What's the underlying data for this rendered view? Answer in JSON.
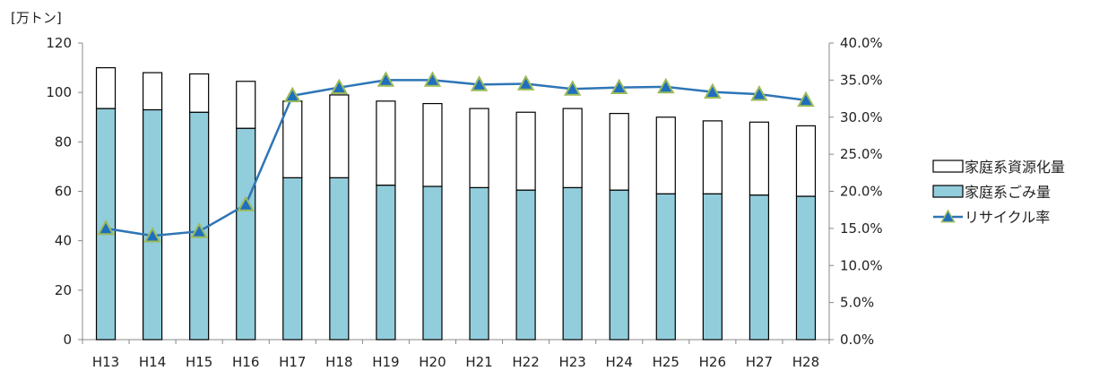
{
  "chart_data": {
    "type": "bar",
    "y_unit_label": "[万トン]",
    "categories": [
      "H13",
      "H14",
      "H15",
      "H16",
      "H17",
      "H18",
      "H19",
      "H20",
      "H21",
      "H22",
      "H23",
      "H24",
      "H25",
      "H26",
      "H27",
      "H28"
    ],
    "series": [
      {
        "name": "家庭系ごみ量",
        "kind": "stacked-bar",
        "axis": "left",
        "color": "#92cddc",
        "values": [
          93.5,
          93,
          92,
          85.5,
          65.5,
          65.5,
          62.5,
          62,
          61.5,
          60.5,
          61.5,
          60.5,
          59,
          59,
          58.5,
          58
        ]
      },
      {
        "name": "家庭系資源化量",
        "kind": "stacked-bar",
        "axis": "left",
        "color": "#ffffff",
        "values": [
          16.5,
          15,
          15.5,
          19,
          31,
          33.5,
          34,
          33.5,
          32,
          31.5,
          32,
          31,
          31,
          29.5,
          29.5,
          28.5
        ]
      },
      {
        "name": "リサイクル率",
        "kind": "line",
        "axis": "right",
        "color": "#2e75b6",
        "marker_color": "#1f6fbf",
        "marker_border": "#9bbb59",
        "values": [
          15.0,
          14.0,
          14.6,
          18.2,
          32.9,
          34.0,
          35.0,
          35.0,
          34.4,
          34.5,
          33.8,
          34.0,
          34.1,
          33.4,
          33.1,
          32.3
        ]
      }
    ],
    "y_left": {
      "min": 0,
      "max": 120,
      "step": 20,
      "ticks": [
        "0",
        "20",
        "40",
        "60",
        "80",
        "100",
        "120"
      ]
    },
    "y_right": {
      "min": 0,
      "max": 40,
      "step": 5,
      "ticks": [
        "0.0%",
        "5.0%",
        "10.0%",
        "15.0%",
        "20.0%",
        "25.0%",
        "30.0%",
        "35.0%",
        "40.0%"
      ]
    },
    "grid": false,
    "legend_position": "right",
    "legend": [
      "家庭系資源化量",
      "家庭系ごみ量",
      "リサイクル率"
    ]
  }
}
